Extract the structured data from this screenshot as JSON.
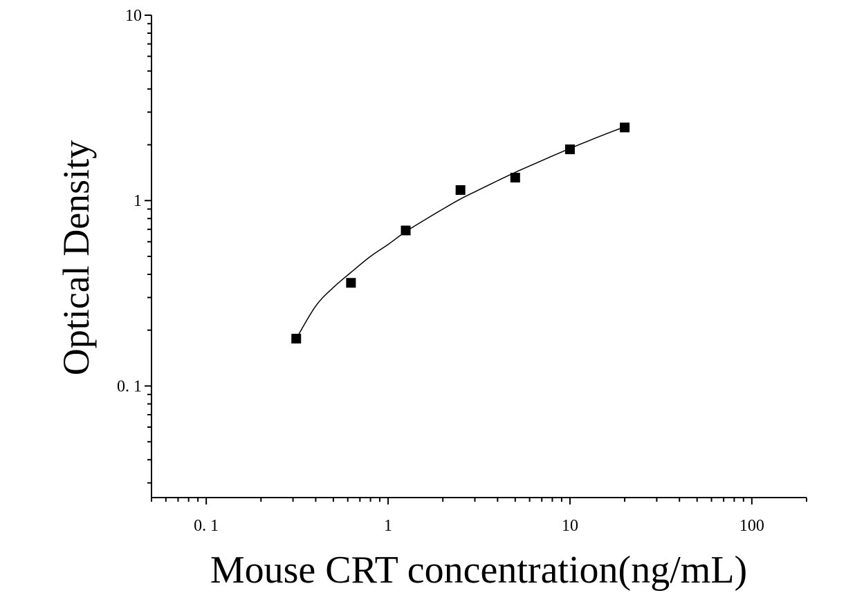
{
  "chart_data": {
    "type": "scatter",
    "title": "",
    "xlabel": "Mouse CRT concentration(ng/mL)",
    "ylabel": "Optical Density",
    "x_scale": "log",
    "y_scale": "log",
    "xlim": [
      0.05,
      200
    ],
    "ylim": [
      0.025,
      10
    ],
    "x_tick_labels": [
      {
        "value": 0.1,
        "label": "0. 1"
      },
      {
        "value": 1,
        "label": "1"
      },
      {
        "value": 10,
        "label": "10"
      },
      {
        "value": 100,
        "label": "100"
      }
    ],
    "y_tick_labels": [
      {
        "value": 0.1,
        "label": "0. 1"
      },
      {
        "value": 1,
        "label": "1"
      },
      {
        "value": 10,
        "label": "10"
      }
    ],
    "grid": false,
    "legend": "none",
    "series": [
      {
        "marker": "square",
        "color": "#000000",
        "x": [
          0.3125,
          0.625,
          1.25,
          2.5,
          5,
          10,
          20
        ],
        "y": [
          0.18,
          0.36,
          0.69,
          1.14,
          1.33,
          1.89,
          2.48
        ]
      }
    ],
    "fit_curve": {
      "color": "#000000",
      "x": [
        0.3125,
        0.4,
        0.5,
        0.625,
        0.8,
        1.0,
        1.25,
        1.6,
        2.0,
        2.5,
        3.2,
        4.0,
        5.0,
        6.4,
        8.0,
        10.0,
        12.8,
        16.0,
        20.0
      ],
      "y": [
        0.18,
        0.27,
        0.34,
        0.41,
        0.5,
        0.58,
        0.68,
        0.79,
        0.9,
        1.02,
        1.15,
        1.28,
        1.42,
        1.58,
        1.74,
        1.91,
        2.11,
        2.3,
        2.5
      ]
    }
  }
}
